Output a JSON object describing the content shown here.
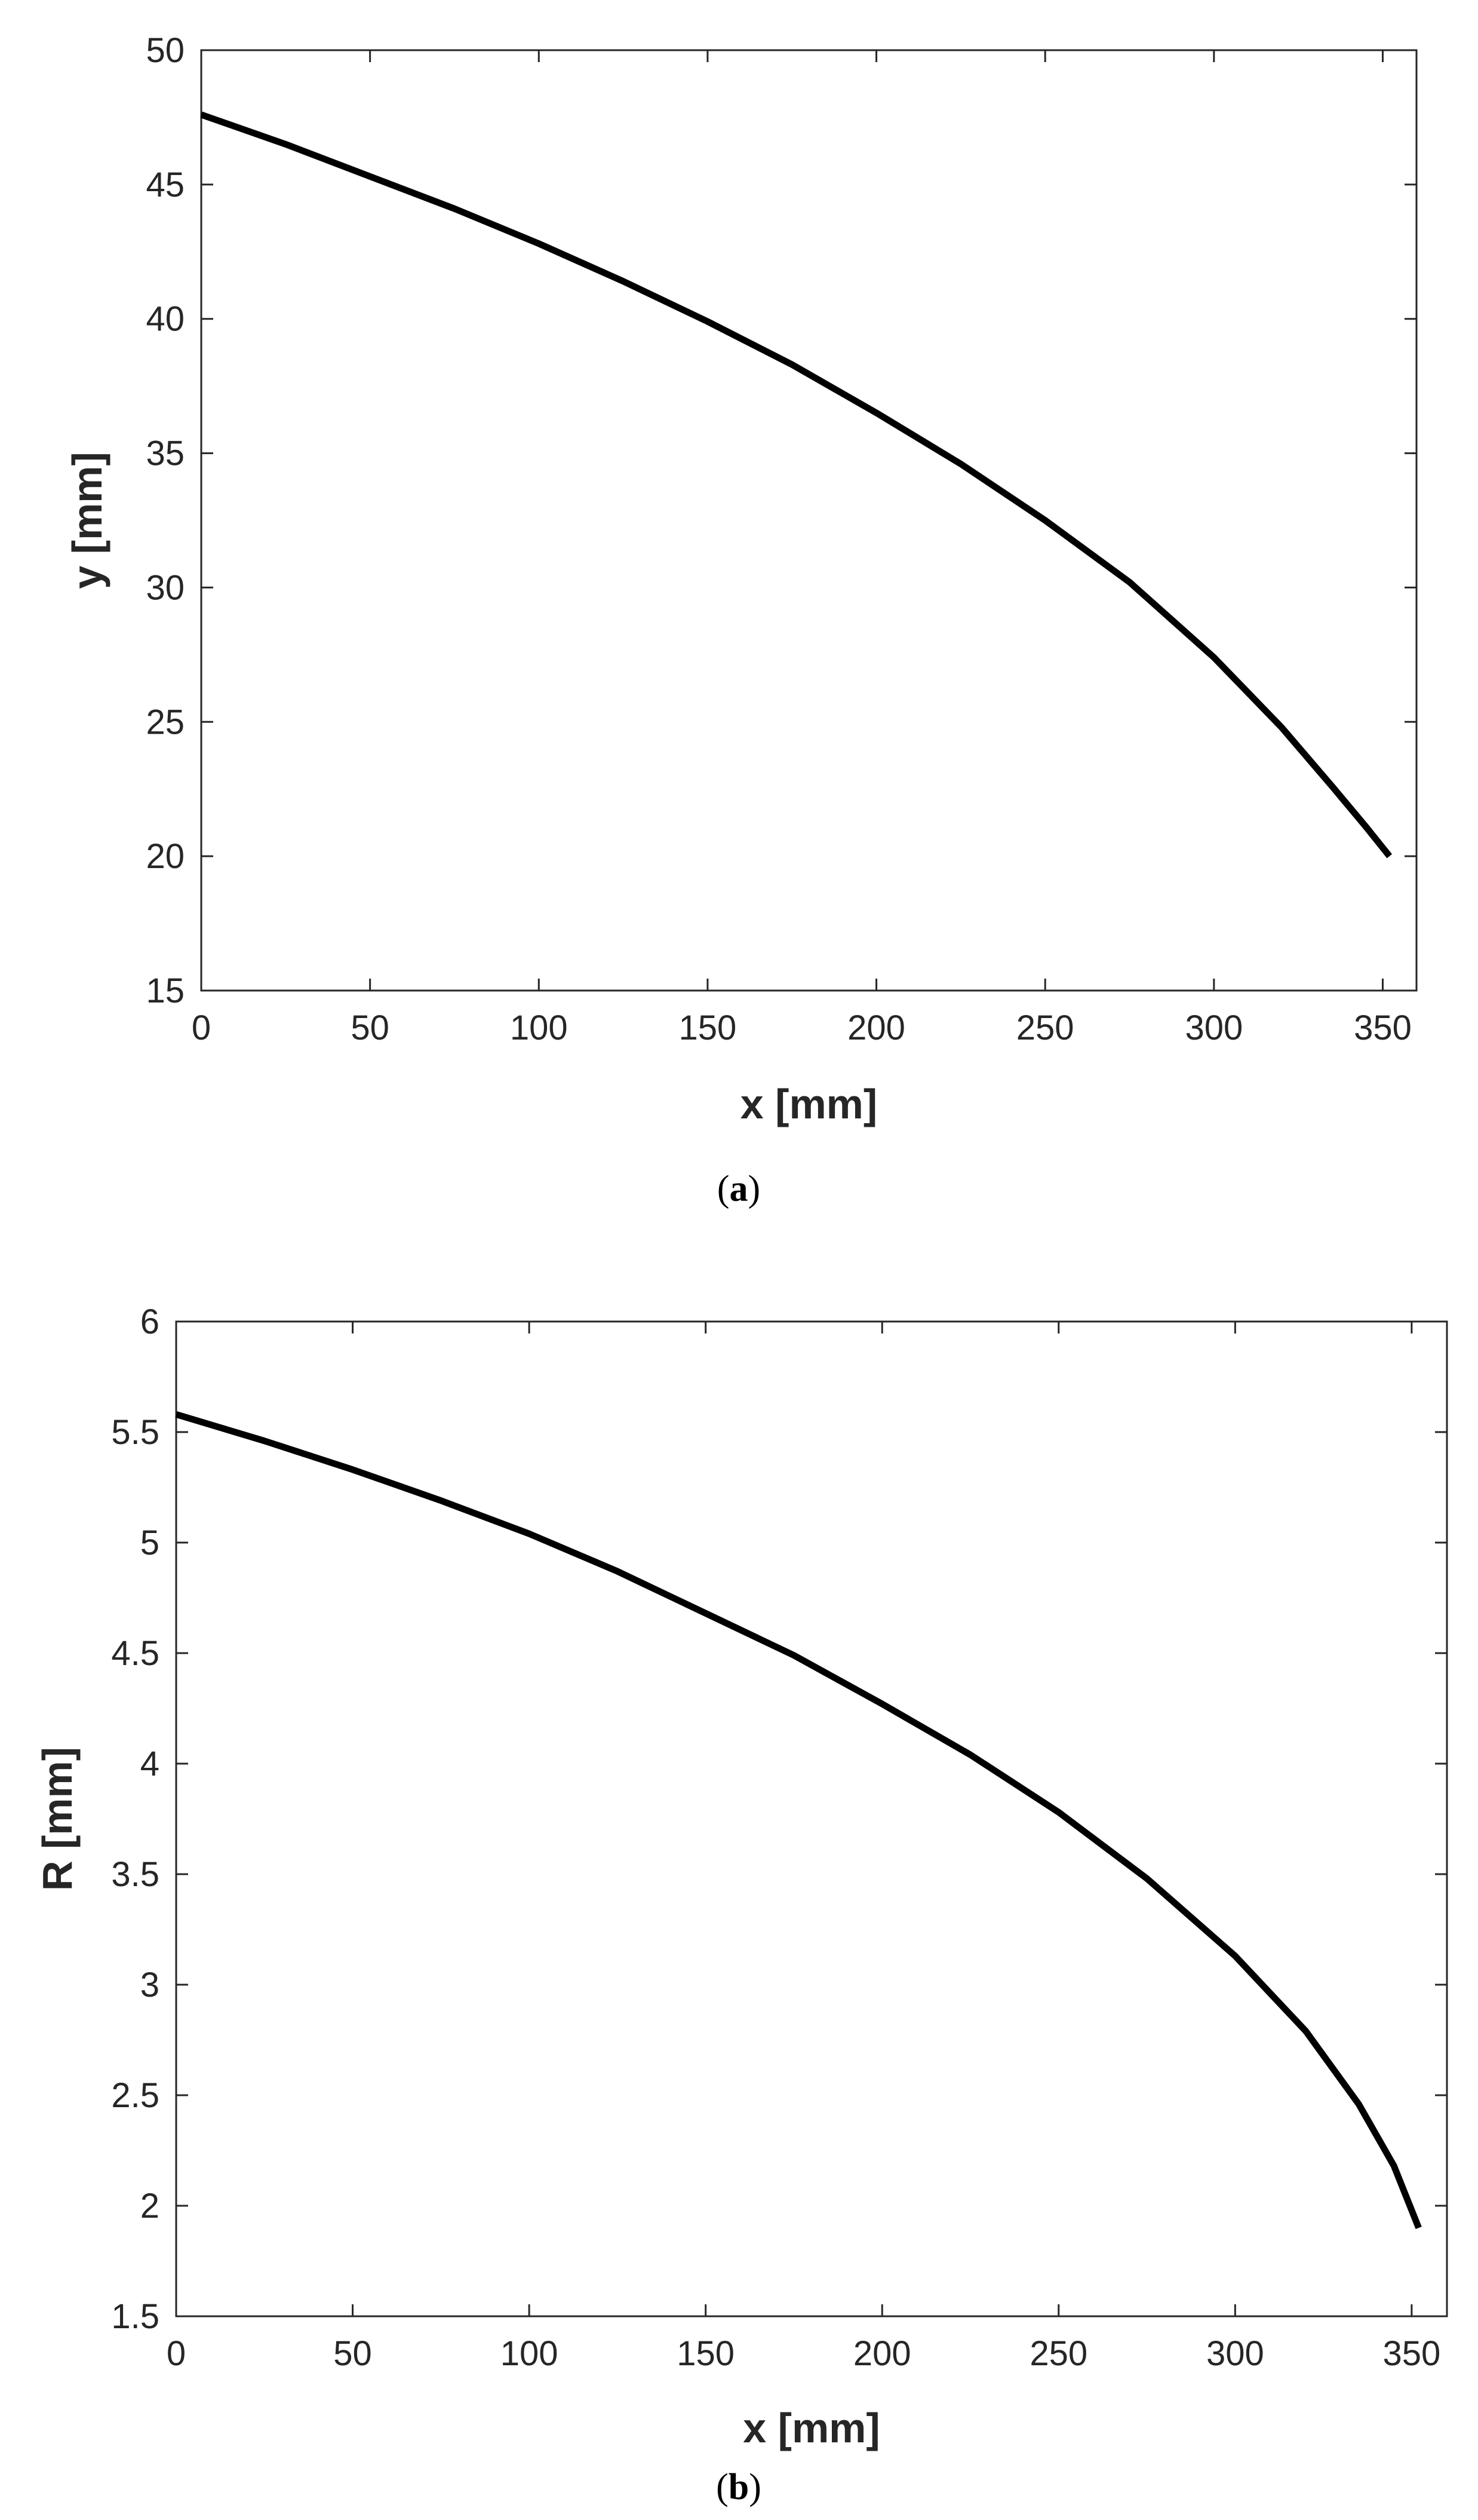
{
  "chart_data": [
    {
      "type": "line",
      "caption_open": "(",
      "caption_letter": "a",
      "caption_close": ")",
      "xlabel": "x [mm]",
      "ylabel": "y [mm]",
      "xlim": [
        0,
        360
      ],
      "ylim": [
        15,
        50
      ],
      "xticks": [
        0,
        50,
        100,
        150,
        200,
        250,
        300,
        350
      ],
      "yticks": [
        15,
        20,
        25,
        30,
        35,
        40,
        45,
        50
      ],
      "grid": false,
      "line_color": "#000000",
      "series": [
        {
          "x": [
            0,
            25,
            50,
            75,
            100,
            125,
            150,
            175,
            200,
            225,
            250,
            275,
            300,
            320,
            335,
            345,
            352
          ],
          "y": [
            47.6,
            46.5,
            45.3,
            44.1,
            42.8,
            41.4,
            39.9,
            38.3,
            36.5,
            34.6,
            32.5,
            30.2,
            27.4,
            24.8,
            22.6,
            21.1,
            20.0
          ]
        }
      ]
    },
    {
      "type": "line",
      "caption_open": "(",
      "caption_letter": "b",
      "caption_close": ")",
      "xlabel": "x [mm]",
      "ylabel": "R [mm]",
      "xlim": [
        0,
        360
      ],
      "ylim": [
        1.5,
        6
      ],
      "xticks": [
        0,
        50,
        100,
        150,
        200,
        250,
        300,
        350
      ],
      "yticks": [
        1.5,
        2,
        2.5,
        3,
        3.5,
        4,
        4.5,
        5,
        5.5,
        6
      ],
      "ytick_labels": [
        "1.5",
        "2",
        "2.5",
        "3",
        "3.5",
        "4",
        "4.5",
        "5",
        "5.5",
        "6"
      ],
      "grid": false,
      "line_color": "#000000",
      "series": [
        {
          "x": [
            0,
            25,
            50,
            75,
            100,
            125,
            150,
            175,
            200,
            225,
            250,
            275,
            300,
            320,
            335,
            345,
            352
          ],
          "y": [
            5.58,
            5.46,
            5.33,
            5.19,
            5.04,
            4.87,
            4.68,
            4.49,
            4.27,
            4.04,
            3.78,
            3.48,
            3.13,
            2.79,
            2.46,
            2.18,
            1.9
          ]
        }
      ]
    }
  ]
}
